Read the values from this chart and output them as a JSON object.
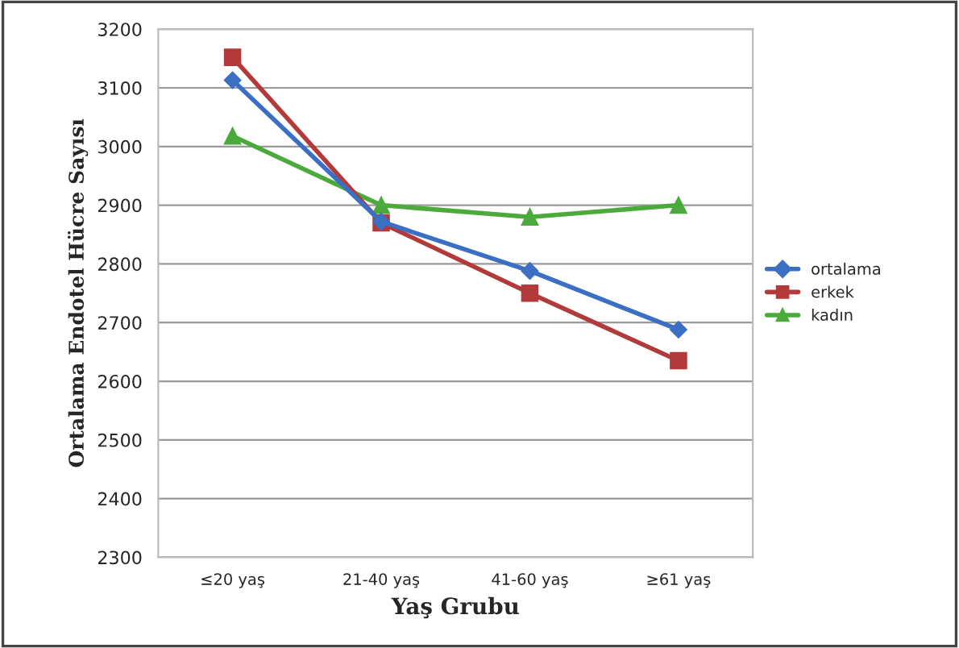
{
  "chart_data": {
    "type": "line",
    "xlabel": "Yaş Grubu",
    "ylabel": "Ortalama Endotel Hücre Sayısı",
    "categories": [
      "≤20 yaş",
      "21-40 yaş",
      "41-60 yaş",
      "≥61 yaş"
    ],
    "series": [
      {
        "name": "ortalama",
        "color": "#3a6fc4",
        "marker": "diamond",
        "values": [
          3113,
          2872,
          2788,
          2688
        ]
      },
      {
        "name": "erkek",
        "color": "#b23a3a",
        "marker": "square",
        "values": [
          3152,
          2870,
          2750,
          2635
        ]
      },
      {
        "name": "kadın",
        "color": "#4caa3c",
        "marker": "triangle",
        "values": [
          3018,
          2900,
          2880,
          2900
        ]
      }
    ],
    "ylim": [
      2300,
      3200
    ],
    "yticks": [
      2300,
      2400,
      2500,
      2600,
      2700,
      2800,
      2900,
      3000,
      3100,
      3200
    ],
    "grid": "y",
    "legend": "right"
  }
}
